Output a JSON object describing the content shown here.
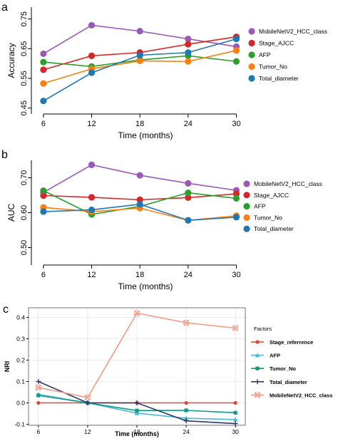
{
  "chart_data": [
    {
      "panel": "a",
      "type": "line",
      "xlabel": "Time (months)",
      "ylabel": "Accuracy",
      "x": [
        6,
        12,
        18,
        24,
        30
      ],
      "xlim": [
        4.5,
        32
      ],
      "ylim": [
        0.43,
        0.79
      ],
      "yticks": [
        0.45,
        0.55,
        0.65,
        0.75
      ],
      "ytick_labels": [
        "0.45",
        "0.55",
        "0.65",
        "0.75"
      ],
      "legend_position": "right",
      "series": [
        {
          "name": "MobileNetV2_HCC_class",
          "color": "#9b59b6",
          "values": [
            0.633,
            0.729,
            0.709,
            0.683,
            0.657
          ]
        },
        {
          "name": "Stage_AJCC",
          "color": "#d62728",
          "values": [
            0.579,
            0.626,
            0.637,
            0.665,
            0.69
          ]
        },
        {
          "name": "AFP",
          "color": "#2ca02c",
          "values": [
            0.605,
            0.59,
            0.612,
            0.626,
            0.607
          ]
        },
        {
          "name": "Tumor_No",
          "color": "#ff7f0e",
          "values": [
            0.533,
            0.582,
            0.609,
            0.607,
            0.644
          ]
        },
        {
          "name": "Total_diameter",
          "color": "#1f77b4",
          "values": [
            0.474,
            0.569,
            0.628,
            0.637,
            0.683
          ]
        }
      ]
    },
    {
      "panel": "b",
      "type": "line",
      "xlabel": "Time (months)",
      "ylabel": "AUC",
      "x": [
        6,
        12,
        18,
        24,
        30
      ],
      "xlim": [
        4.5,
        32
      ],
      "ylim": [
        0.45,
        0.75
      ],
      "yticks": [
        0.5,
        0.6,
        0.7
      ],
      "ytick_labels": [
        "0.50",
        "0.60",
        "0.70"
      ],
      "legend_position": "right",
      "series": [
        {
          "name": "MobileNetV2_HCC_class",
          "color": "#9b59b6",
          "values": [
            0.658,
            0.737,
            0.707,
            0.684,
            0.664
          ]
        },
        {
          "name": "Stage_AJCC",
          "color": "#d62728",
          "values": [
            0.649,
            0.644,
            0.637,
            0.643,
            0.654
          ]
        },
        {
          "name": "AFP",
          "color": "#2ca02c",
          "values": [
            0.663,
            0.595,
            0.618,
            0.657,
            0.641
          ]
        },
        {
          "name": "Tumor_No",
          "color": "#ff7f0e",
          "values": [
            0.615,
            0.603,
            0.613,
            0.578,
            0.591
          ]
        },
        {
          "name": "Total_diameter",
          "color": "#1f77b4",
          "values": [
            0.603,
            0.608,
            0.624,
            0.578,
            0.587
          ]
        }
      ]
    },
    {
      "panel": "c",
      "type": "line",
      "xlabel": "Time (months)",
      "ylabel": "NRI",
      "x": [
        6,
        12,
        18,
        24,
        30
      ],
      "xlim": [
        4.8,
        31.2
      ],
      "ylim": [
        -0.105,
        0.445
      ],
      "yticks": [
        -0.1,
        0.0,
        0.1,
        0.2,
        0.3,
        0.4
      ],
      "ytick_labels": [
        "-0.1",
        "0.0",
        "0.1",
        "0.2",
        "0.3",
        "0.4"
      ],
      "legend_title": "Factors",
      "legend_position": "right",
      "series": [
        {
          "name": "Stage_referrence",
          "color": "#e0453a",
          "marker": "circle",
          "values": [
            0.0,
            0.0,
            0.0,
            0.0,
            0.0
          ]
        },
        {
          "name": "AFP",
          "color": "#4fb6d6",
          "marker": "triangle",
          "values": [
            0.04,
            0.0,
            -0.048,
            -0.072,
            -0.078
          ]
        },
        {
          "name": "Tumor_No",
          "color": "#0d9a84",
          "marker": "square",
          "values": [
            0.035,
            0.0,
            -0.036,
            -0.035,
            -0.046
          ]
        },
        {
          "name": "Total_diameter",
          "color": "#2b3a6e",
          "marker": "plus",
          "values": [
            0.1,
            0.0,
            0.0,
            -0.084,
            -0.097
          ]
        },
        {
          "name": "MobileNetV2_HCC_class",
          "color": "#f09a84",
          "marker": "cross",
          "values": [
            0.072,
            0.025,
            0.42,
            0.375,
            0.35
          ]
        }
      ]
    }
  ]
}
